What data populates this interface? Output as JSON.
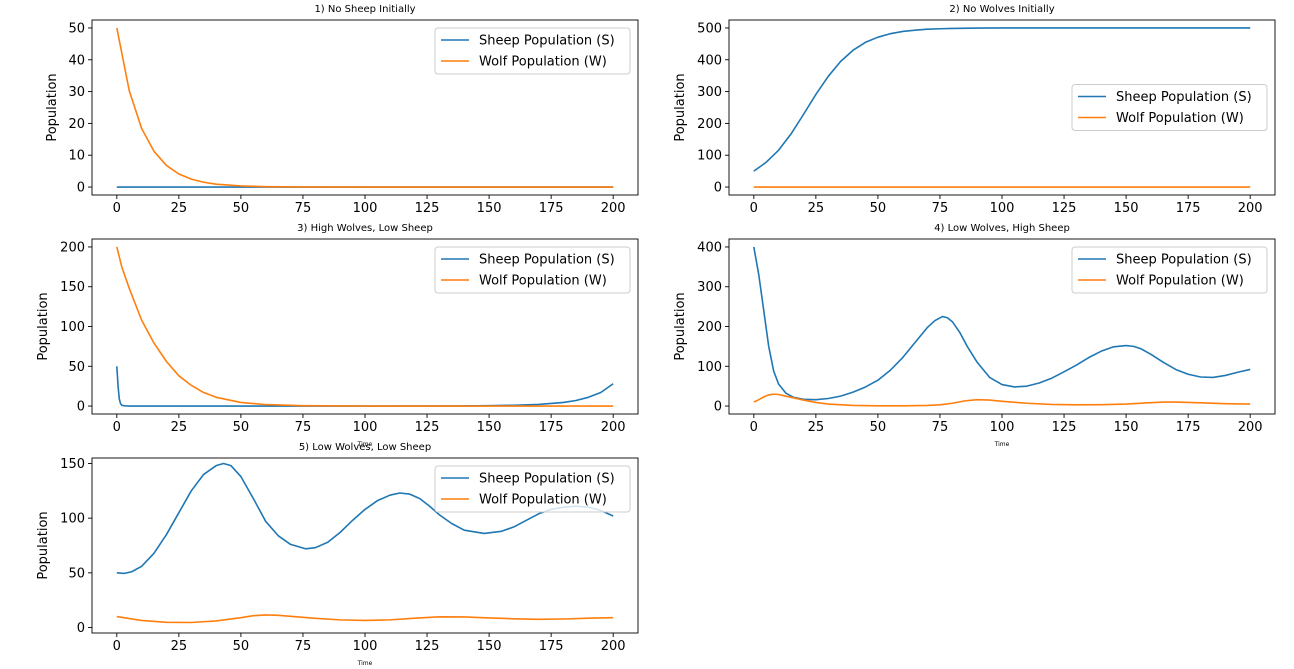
{
  "colors": {
    "sheep": "#1f77b4",
    "wolf": "#ff7f0e",
    "axis": "#000000",
    "legend_border": "#cccccc"
  },
  "chart_data": [
    {
      "type": "line",
      "title": "1) No Sheep Initially",
      "xlabel": "",
      "ylabel": "Population",
      "xlim": [
        -10,
        210
      ],
      "ylim": [
        -2.5,
        52.5
      ],
      "xticks": [
        0,
        25,
        50,
        75,
        100,
        125,
        150,
        175,
        200
      ],
      "yticks": [
        0,
        10,
        20,
        30,
        40,
        50
      ],
      "legend": "upper right",
      "grid": false,
      "series": [
        {
          "name": "Sheep Population (S)",
          "x": [
            0,
            25,
            50,
            75,
            100,
            125,
            150,
            175,
            200
          ],
          "y": [
            0,
            0,
            0,
            0,
            0,
            0,
            0,
            0,
            0
          ]
        },
        {
          "name": "Wolf Population (W)",
          "x": [
            0,
            5,
            10,
            15,
            20,
            25,
            30,
            35,
            40,
            50,
            60,
            75,
            100,
            150,
            200
          ],
          "y": [
            50,
            30.3,
            18.4,
            11.2,
            6.8,
            4.1,
            2.5,
            1.5,
            0.9,
            0.34,
            0.12,
            0.03,
            0,
            0,
            0
          ]
        }
      ]
    },
    {
      "type": "line",
      "title": "2) No Wolves Initially",
      "xlabel": "",
      "ylabel": "Population",
      "xlim": [
        -10,
        210
      ],
      "ylim": [
        -25,
        525
      ],
      "xticks": [
        0,
        25,
        50,
        75,
        100,
        125,
        150,
        175,
        200
      ],
      "yticks": [
        0,
        100,
        200,
        300,
        400,
        500
      ],
      "legend": "center right",
      "grid": false,
      "series": [
        {
          "name": "Sheep Population (S)",
          "x": [
            0,
            5,
            10,
            15,
            20,
            25,
            30,
            35,
            40,
            45,
            50,
            55,
            60,
            65,
            70,
            75,
            80,
            90,
            100,
            125,
            150,
            175,
            200
          ],
          "y": [
            50,
            78,
            116,
            167,
            228,
            291,
            348,
            395,
            430,
            455,
            471,
            482,
            489,
            493,
            496,
            497.5,
            498.5,
            499.5,
            500,
            500,
            500,
            500,
            500
          ]
        },
        {
          "name": "Wolf Population (W)",
          "x": [
            0,
            200
          ],
          "y": [
            0,
            0
          ]
        }
      ]
    },
    {
      "type": "line",
      "title": "3) High Wolves, Low Sheep",
      "xlabel": "Time",
      "ylabel": "Population",
      "xlim": [
        -10,
        210
      ],
      "ylim": [
        -10,
        210
      ],
      "xticks": [
        0,
        25,
        50,
        75,
        100,
        125,
        150,
        175,
        200
      ],
      "yticks": [
        0,
        50,
        100,
        150,
        200
      ],
      "legend": "upper right",
      "grid": false,
      "series": [
        {
          "name": "Sheep Population (S)",
          "x": [
            0,
            0.5,
            1,
            1.5,
            2,
            3,
            5,
            10,
            50,
            100,
            140,
            150,
            160,
            170,
            180,
            185,
            190,
            195,
            200
          ],
          "y": [
            50,
            25,
            9,
            3,
            1,
            0.3,
            0,
            0,
            0,
            0,
            0.2,
            0.5,
            1,
            2,
            4.5,
            7,
            11,
            17,
            28
          ]
        },
        {
          "name": "Wolf Population (W)",
          "x": [
            0,
            2,
            5,
            10,
            15,
            20,
            25,
            30,
            35,
            40,
            50,
            60,
            75,
            100,
            200
          ],
          "y": [
            200,
            175,
            148,
            108,
            79,
            56,
            38,
            26,
            17,
            11,
            4.5,
            1.8,
            0.5,
            0,
            0
          ]
        }
      ]
    },
    {
      "type": "line",
      "title": "4) Low Wolves, High Sheep",
      "xlabel": "Time",
      "ylabel": "Population",
      "xlim": [
        -10,
        210
      ],
      "ylim": [
        -20,
        420
      ],
      "xticks": [
        0,
        25,
        50,
        75,
        100,
        125,
        150,
        175,
        200
      ],
      "yticks": [
        0,
        100,
        200,
        300,
        400
      ],
      "legend": "upper right",
      "grid": false,
      "series": [
        {
          "name": "Sheep Population (S)",
          "x": [
            0,
            2,
            4,
            6,
            8,
            10,
            13,
            16,
            20,
            25,
            30,
            35,
            40,
            45,
            50,
            55,
            60,
            65,
            70,
            73,
            76,
            78,
            80,
            83,
            86,
            90,
            95,
            100,
            105,
            110,
            115,
            120,
            125,
            130,
            135,
            140,
            145,
            150,
            153,
            156,
            160,
            165,
            170,
            175,
            180,
            185,
            190,
            195,
            200
          ],
          "y": [
            400,
            330,
            240,
            150,
            88,
            55,
            32,
            22,
            17,
            16,
            19,
            25,
            35,
            48,
            65,
            90,
            122,
            160,
            198,
            215,
            225,
            222,
            212,
            185,
            150,
            110,
            72,
            54,
            48,
            50,
            58,
            70,
            86,
            103,
            122,
            138,
            149,
            152,
            150,
            144,
            130,
            110,
            92,
            80,
            73,
            72,
            77,
            85,
            92
          ]
        },
        {
          "name": "Wolf Population (W)",
          "x": [
            0,
            2,
            4,
            6,
            8,
            10,
            12,
            15,
            20,
            25,
            30,
            40,
            50,
            60,
            70,
            75,
            80,
            85,
            90,
            95,
            100,
            110,
            120,
            130,
            140,
            150,
            160,
            165,
            170,
            180,
            190,
            200
          ],
          "y": [
            10,
            16,
            23,
            28,
            30,
            29,
            26,
            22,
            15,
            9,
            5,
            1.5,
            0.5,
            0.5,
            1.5,
            3,
            7,
            13,
            16,
            15,
            12,
            7,
            4,
            3,
            3.5,
            5,
            8.5,
            10,
            10,
            8,
            6,
            5
          ]
        }
      ]
    },
    {
      "type": "line",
      "title": "5) Low Wolves, Low Sheep",
      "xlabel": "Time",
      "ylabel": "Population",
      "xlim": [
        -10,
        210
      ],
      "ylim": [
        -5,
        155
      ],
      "xticks": [
        0,
        25,
        50,
        75,
        100,
        125,
        150,
        175,
        200
      ],
      "yticks": [
        0,
        50,
        100,
        150
      ],
      "legend": "upper right",
      "grid": false,
      "series": [
        {
          "name": "Sheep Population (S)",
          "x": [
            0,
            3,
            6,
            10,
            15,
            20,
            25,
            30,
            35,
            40,
            43,
            46,
            50,
            55,
            60,
            65,
            70,
            76,
            80,
            85,
            90,
            95,
            100,
            105,
            110,
            114,
            118,
            122,
            126,
            130,
            135,
            140,
            148,
            155,
            160,
            165,
            170,
            175,
            180,
            185,
            190,
            195,
            200
          ],
          "y": [
            50,
            49.5,
            51,
            56,
            68,
            85,
            105,
            125,
            140,
            148,
            150,
            148,
            138,
            118,
            97,
            84,
            76,
            72,
            73,
            78,
            87,
            98,
            108,
            116,
            121,
            123,
            122,
            118,
            111,
            103,
            95,
            89,
            86,
            88,
            92,
            98,
            104,
            108,
            110,
            111,
            110,
            107,
            102
          ]
        },
        {
          "name": "Wolf Population (W)",
          "x": [
            0,
            10,
            20,
            30,
            40,
            50,
            55,
            60,
            65,
            70,
            80,
            90,
            100,
            110,
            120,
            130,
            140,
            150,
            160,
            170,
            180,
            190,
            200
          ],
          "y": [
            10,
            6.5,
            4.8,
            4.6,
            6,
            9,
            10.8,
            11.5,
            11.2,
            10.3,
            8.4,
            7,
            6.5,
            7,
            8.5,
            9.8,
            9.7,
            8.8,
            8,
            7.5,
            7.8,
            8.5,
            9
          ]
        }
      ]
    }
  ]
}
